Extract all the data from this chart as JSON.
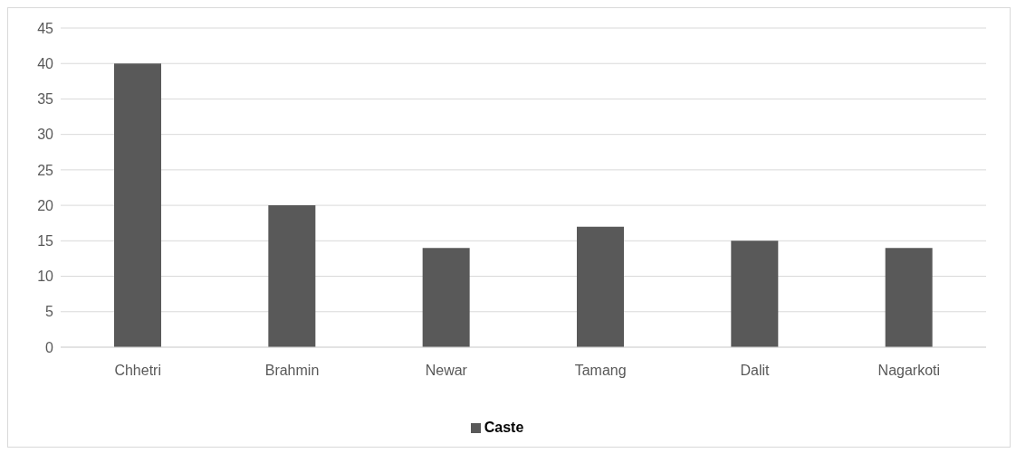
{
  "chart_data": {
    "type": "bar",
    "categories": [
      "Chhetri",
      "Brahmin",
      "Newar",
      "Tamang",
      "Dalit",
      "Nagarkoti"
    ],
    "series": [
      {
        "name": "Caste",
        "color": "#595959",
        "values": [
          40,
          20,
          14,
          17,
          15,
          14
        ]
      }
    ],
    "ylim": [
      0,
      45
    ],
    "yticks": [
      0,
      5,
      10,
      15,
      20,
      25,
      30,
      35,
      40,
      45
    ],
    "grid": "y",
    "legend": "bottom"
  }
}
